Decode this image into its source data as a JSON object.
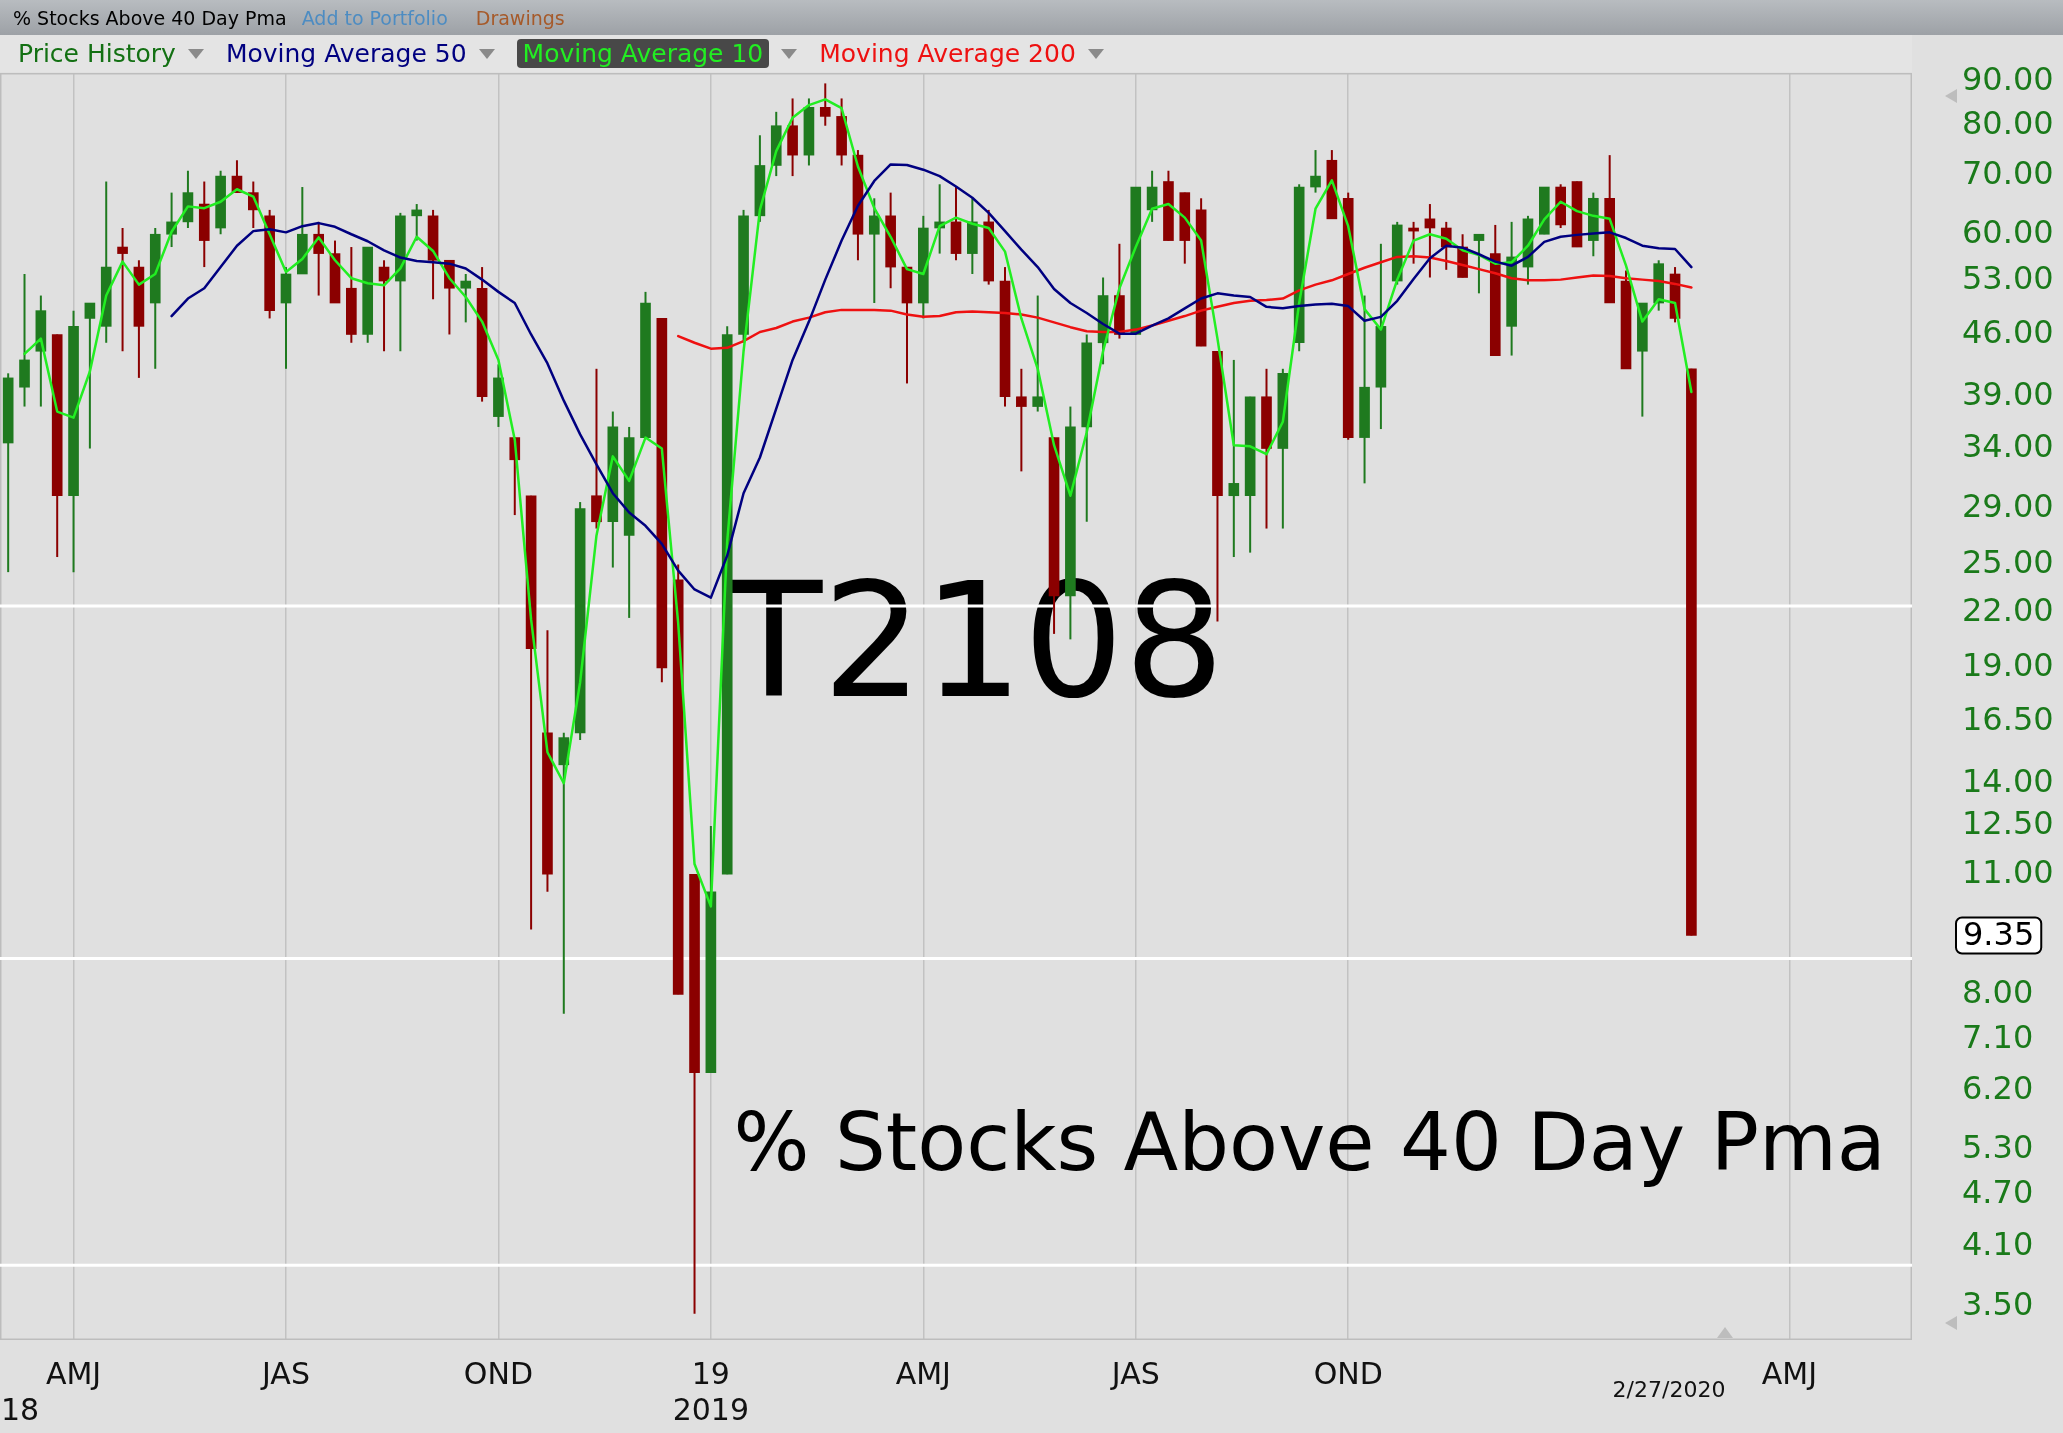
{
  "chart_data": {
    "type": "candlestick",
    "title": "% Stocks Above 40 Day Pma",
    "annotations": [
      "Add to Portfolio",
      "Drawings",
      "T2108",
      "% Stocks Above 40 Day Pma",
      "9.35",
      "2/27/2020",
      "18",
      "2019"
    ],
    "categories": [
      null,
      null,
      null,
      null,
      "AMJ",
      null,
      null,
      null,
      null,
      null,
      null,
      null,
      null,
      null,
      null,
      null,
      null,
      "JAS",
      null,
      null,
      null,
      null,
      null,
      null,
      null,
      null,
      null,
      null,
      null,
      null,
      "OND",
      null,
      null,
      null,
      null,
      null,
      null,
      null,
      null,
      null,
      null,
      null,
      null,
      "19",
      null,
      null,
      null,
      null,
      null,
      null,
      null,
      null,
      null,
      null,
      null,
      null,
      "AMJ",
      null,
      null,
      null,
      null,
      null,
      null,
      null,
      null,
      null,
      null,
      null,
      null,
      "JAS",
      null,
      null,
      null,
      null,
      null,
      null,
      null,
      null,
      null,
      null,
      null,
      null,
      "OND",
      null,
      null,
      null,
      null,
      null,
      null,
      null,
      null,
      null,
      null,
      null,
      null,
      null,
      null,
      null,
      null,
      null,
      null,
      null,
      null,
      null,
      null,
      null,
      null,
      null,
      null,
      "AMJ",
      null,
      null,
      null,
      null,
      null,
      null,
      null
    ],
    "ylim": [
      3.2,
      92
    ],
    "yticks": [
      {
        "value": 3.5,
        "label": "3.50"
      },
      {
        "value": 4.1,
        "label": "4.10"
      },
      {
        "value": 4.7,
        "label": "4.70"
      },
      {
        "value": 5.3,
        "label": "5.30"
      },
      {
        "value": 6.2,
        "label": "6.20"
      },
      {
        "value": 7.1,
        "label": "7.10"
      },
      {
        "value": 8,
        "label": "8.00"
      },
      {
        "value": 11,
        "label": "11.00"
      },
      {
        "value": 12.5,
        "label": "12.50"
      },
      {
        "value": 14,
        "label": "14.00"
      },
      {
        "value": 16.5,
        "label": "16.50"
      },
      {
        "value": 19,
        "label": "19.00"
      },
      {
        "value": 22,
        "label": "22.00"
      },
      {
        "value": 25,
        "label": "25.00"
      },
      {
        "value": 29,
        "label": "29.00"
      },
      {
        "value": 34,
        "label": "34.00"
      },
      {
        "value": 39,
        "label": "39.00"
      },
      {
        "value": 46,
        "label": "46.00"
      },
      {
        "value": 53,
        "label": "53.00"
      },
      {
        "value": 60,
        "label": "60.00"
      },
      {
        "value": 70,
        "label": "70.00"
      },
      {
        "value": 80,
        "label": "80.00"
      },
      {
        "value": 90,
        "label": "90.00"
      }
    ],
    "log": true,
    "grid": "x",
    "legend": "top left",
    "ref_lines": [
      {
        "axis": "y",
        "value": 22.4,
        "color": "#ffffff"
      },
      {
        "axis": "y",
        "value": 8.8,
        "color": "#ffffff"
      },
      {
        "axis": "y",
        "value": 3.9,
        "color": "#ffffff"
      }
    ],
    "series": [
      {
        "name": "Price History",
        "color": "#137013",
        "ohlc": [
          [
            34.5,
            41.5,
            24.5,
            41
          ],
          [
            40,
            54,
            38,
            43
          ],
          [
            44,
            51,
            38,
            49
          ],
          [
            46,
            46,
            25.5,
            30
          ],
          [
            30,
            49,
            24.5,
            47
          ],
          [
            48,
            50,
            34,
            50
          ],
          [
            47,
            69,
            45,
            55
          ],
          [
            58,
            61,
            44,
            57
          ],
          [
            55,
            56,
            41,
            47
          ],
          [
            50,
            61,
            42,
            60
          ],
          [
            60,
            67,
            58,
            62
          ],
          [
            62,
            71,
            61,
            67
          ],
          [
            65,
            69,
            55,
            59
          ],
          [
            61,
            71,
            60,
            70
          ],
          [
            70,
            73,
            67,
            67
          ],
          [
            67,
            69,
            61,
            64
          ],
          [
            63,
            64,
            48,
            49
          ],
          [
            50,
            55,
            42,
            54
          ],
          [
            54,
            68,
            54,
            60
          ],
          [
            60,
            62,
            51,
            57
          ],
          [
            57,
            59,
            50,
            50
          ],
          [
            52,
            58,
            45,
            46
          ],
          [
            46,
            58,
            45,
            58
          ],
          [
            55,
            56,
            44,
            53
          ],
          [
            53,
            63.5,
            44,
            63
          ],
          [
            63,
            65,
            59,
            64
          ],
          [
            63,
            64,
            50.5,
            56
          ],
          [
            56,
            56,
            46,
            52
          ],
          [
            52,
            54,
            47.5,
            53
          ],
          [
            52,
            55,
            38.5,
            39
          ],
          [
            37,
            42.5,
            36,
            41
          ],
          [
            35,
            35,
            28.5,
            33
          ],
          [
            30,
            30,
            9.5,
            20
          ],
          [
            16,
            21,
            10.5,
            11
          ],
          [
            14.7,
            16,
            7.6,
            15.8
          ],
          [
            16,
            29.5,
            15.7,
            29
          ],
          [
            30,
            42,
            27.5,
            28
          ],
          [
            28,
            37.5,
            24.8,
            36
          ],
          [
            27,
            36,
            21.7,
            35
          ],
          [
            35,
            51.5,
            35,
            50
          ],
          [
            48,
            48,
            18.3,
            19
          ],
          [
            24,
            25,
            8,
            8
          ],
          [
            11,
            11,
            3.43,
            6.5
          ],
          [
            6.5,
            12.5,
            6.5,
            10.5
          ],
          [
            11,
            47,
            11,
            46
          ],
          [
            46,
            64,
            45,
            63
          ],
          [
            63,
            78,
            62,
            72
          ],
          [
            72,
            83,
            70,
            80
          ],
          [
            80,
            86,
            70,
            74
          ],
          [
            74,
            86,
            72,
            84
          ],
          [
            84,
            89.5,
            80,
            82
          ],
          [
            82,
            86,
            72,
            74
          ],
          [
            74,
            75,
            56,
            60
          ],
          [
            60,
            66,
            50,
            63
          ],
          [
            63,
            67,
            52,
            55
          ],
          [
            55,
            55,
            40.4,
            50
          ],
          [
            50,
            63,
            48,
            61
          ],
          [
            61,
            68.5,
            57,
            62
          ],
          [
            62,
            68,
            56,
            57
          ],
          [
            57,
            66,
            54,
            62
          ],
          [
            62,
            64,
            52.5,
            53
          ],
          [
            53,
            55,
            38,
            39
          ],
          [
            39,
            42,
            32,
            38
          ],
          [
            38,
            51,
            37.5,
            39
          ],
          [
            35,
            35,
            20.8,
            23
          ],
          [
            23,
            38,
            20.5,
            36
          ],
          [
            36,
            46,
            28,
            45
          ],
          [
            45,
            53.5,
            42.5,
            51
          ],
          [
            51,
            58.5,
            45.5,
            46
          ],
          [
            46,
            68,
            46,
            68
          ],
          [
            64,
            71,
            62,
            68
          ],
          [
            69,
            71,
            59,
            59
          ],
          [
            67,
            67,
            55.5,
            59
          ],
          [
            64,
            66,
            44.6,
            44.6
          ],
          [
            44,
            44,
            21.5,
            30
          ],
          [
            30,
            43,
            25.5,
            31
          ],
          [
            30,
            39,
            25.8,
            39
          ],
          [
            39,
            42,
            27.5,
            34
          ],
          [
            34,
            42,
            27.5,
            41.5
          ],
          [
            45,
            68.5,
            44,
            68
          ],
          [
            68,
            75,
            67,
            70
          ],
          [
            73,
            75,
            62.5,
            62.5
          ],
          [
            66,
            67,
            34.8,
            35
          ],
          [
            35,
            51,
            31,
            40
          ],
          [
            40,
            58.5,
            35.8,
            47
          ],
          [
            53,
            62,
            52.5,
            61.5
          ],
          [
            61,
            62,
            55.5,
            60.5
          ],
          [
            62.5,
            65,
            53.5,
            61
          ],
          [
            61,
            62,
            54.6,
            58
          ],
          [
            58,
            60,
            53.5,
            53.5
          ],
          [
            59,
            60,
            51.3,
            60
          ],
          [
            57,
            61.5,
            43.5,
            43.5
          ],
          [
            47,
            62,
            43.5,
            56.5
          ],
          [
            55,
            63,
            52.5,
            62.5
          ],
          [
            60,
            68,
            60,
            68
          ],
          [
            68,
            68.5,
            61,
            61.5
          ],
          [
            69,
            69,
            58,
            58
          ],
          [
            59,
            67,
            56.6,
            66
          ],
          [
            66,
            74,
            50,
            50
          ],
          [
            53,
            54.5,
            42,
            42
          ],
          [
            44,
            50,
            37,
            50
          ],
          [
            50,
            56,
            49,
            55.5
          ],
          [
            54,
            55,
            47.5,
            48
          ],
          [
            42,
            42,
            9.35,
            9.35
          ],
          null,
          null,
          null,
          null,
          null,
          null,
          null,
          null,
          null,
          null,
          null,
          null,
          null
        ],
        "colors": [
          "#1f7a1f",
          "#1f7a1f",
          "#1f7a1f",
          "#8b0000",
          "#1f7a1f",
          "#1f7a1f",
          "#1f7a1f",
          "#8b0000",
          "#8b0000",
          "#1f7a1f",
          "#1f7a1f",
          "#1f7a1f",
          "#8b0000",
          "#1f7a1f",
          "#8b0000",
          "#8b0000",
          "#8b0000",
          "#1f7a1f",
          "#1f7a1f",
          "#8b0000",
          "#8b0000",
          "#8b0000",
          "#1f7a1f",
          "#8b0000",
          "#1f7a1f",
          "#1f7a1f",
          "#8b0000",
          "#8b0000",
          "#1f7a1f",
          "#8b0000",
          "#1f7a1f",
          "#8b0000",
          "#8b0000",
          "#8b0000",
          "#1f7a1f",
          "#1f7a1f",
          "#8b0000",
          "#1f7a1f",
          "#1f7a1f",
          "#1f7a1f",
          "#8b0000",
          "#8b0000",
          "#8b0000",
          "#1f7a1f",
          "#1f7a1f",
          "#1f7a1f",
          "#1f7a1f",
          "#1f7a1f",
          "#8b0000",
          "#1f7a1f",
          "#8b0000",
          "#8b0000",
          "#8b0000",
          "#1f7a1f",
          "#8b0000",
          "#8b0000",
          "#1f7a1f",
          "#1f7a1f",
          "#8b0000",
          "#1f7a1f",
          "#8b0000",
          "#8b0000",
          "#8b0000",
          "#1f7a1f",
          "#8b0000",
          "#1f7a1f",
          "#1f7a1f",
          "#1f7a1f",
          "#8b0000",
          "#1f7a1f",
          "#1f7a1f",
          "#8b0000",
          "#8b0000",
          "#8b0000",
          "#8b0000",
          "#1f7a1f",
          "#1f7a1f",
          "#8b0000",
          "#1f7a1f",
          "#1f7a1f",
          "#1f7a1f",
          "#8b0000",
          "#8b0000",
          "#1f7a1f",
          "#1f7a1f",
          "#1f7a1f",
          "#8b0000",
          "#8b0000",
          "#8b0000",
          "#8b0000",
          "#1f7a1f",
          "#8b0000",
          "#1f7a1f",
          "#1f7a1f",
          "#1f7a1f",
          "#8b0000",
          "#8b0000",
          "#1f7a1f",
          "#8b0000",
          "#8b0000",
          "#1f7a1f",
          "#1f7a1f",
          "#8b0000",
          "#8b0000",
          null,
          null,
          null,
          null,
          null,
          null,
          null,
          null,
          null,
          null,
          null,
          null,
          null
        ]
      },
      {
        "type": "line",
        "name": "Moving Average 50",
        "color": "#000080",
        "values": [
          null,
          null,
          null,
          null,
          null,
          null,
          null,
          null,
          null,
          null,
          48.3,
          50.6,
          52,
          55,
          58.2,
          60.5,
          60.8,
          60.3,
          61.3,
          61.8,
          61.2,
          60,
          58.9,
          57.5,
          56.4,
          55.9,
          55.7,
          55.5,
          54.8,
          53.2,
          51.5,
          50,
          46,
          42.6,
          38.6,
          35.3,
          32.6,
          30.2,
          28.7,
          27.7,
          26.4,
          24.6,
          23.4,
          22.9,
          25.6,
          30.2,
          33.2,
          37.8,
          43,
          47.6,
          53.2,
          59,
          64.7,
          69.1,
          72.2,
          72.1,
          71.2,
          70,
          68.1,
          66.1,
          63.5,
          60.5,
          57.6,
          55,
          51.9,
          50,
          48.7,
          47.3,
          46.1,
          46.1,
          47.1,
          48,
          49.3,
          50.6,
          51.3,
          51,
          50.8,
          49.5,
          49.3,
          49.6,
          49.8,
          49.9,
          49.6,
          47.7,
          48.2,
          50.3,
          53.3,
          56.3,
          58.2,
          57.9,
          56.9,
          55.8,
          55.2,
          56.5,
          58.8,
          59.6,
          59.9,
          60.1,
          60.3,
          59.4,
          58.2,
          57.8,
          57.7,
          55,
          null,
          null,
          null,
          null,
          null,
          null,
          null,
          null,
          null,
          null,
          null,
          null,
          null
        ]
      },
      {
        "type": "line",
        "name": "Moving Average 10",
        "color": "#22ee22",
        "values": [
          null,
          43.7,
          45.5,
          37.5,
          36.9,
          41.7,
          51,
          55.8,
          52.5,
          54,
          60.4,
          64.6,
          64.3,
          65.4,
          67.6,
          66.3,
          60,
          54.3,
          56.2,
          59.5,
          56,
          53.4,
          52.7,
          52.4,
          54.8,
          59.6,
          57.4,
          53.4,
          50.8,
          47.6,
          43,
          34.8,
          21.6,
          15.2,
          14,
          18.3,
          27,
          33.3,
          31.2,
          35,
          34,
          21.4,
          11.3,
          10.1,
          26.6,
          44,
          64,
          74.8,
          81.7,
          84.5,
          85.8,
          83.8,
          71.8,
          64.3,
          59.6,
          54.7,
          54,
          61.3,
          62.7,
          61.7,
          61,
          57.3,
          48,
          42,
          34.3,
          30,
          35.5,
          44,
          52,
          58,
          64.2,
          65,
          62.7,
          59,
          45.5,
          34.3,
          34.2,
          33.5,
          36.5,
          50,
          64.2,
          69.2,
          61.3,
          49.2,
          46.6,
          53.2,
          59,
          60,
          59.3,
          57.5,
          56.8,
          55.5,
          55.7,
          58.2,
          62.4,
          65.4,
          63.8,
          63,
          62.5,
          55.2,
          47.6,
          50.5,
          50,
          39.5,
          null,
          null,
          null,
          null,
          null,
          null,
          null,
          null,
          null,
          null,
          null,
          null,
          null
        ]
      },
      {
        "type": "line",
        "name": "Moving Average 200",
        "color": "#ee1111",
        "values": [
          null,
          null,
          null,
          null,
          null,
          null,
          null,
          null,
          null,
          null,
          null,
          null,
          null,
          null,
          null,
          null,
          null,
          null,
          null,
          null,
          null,
          null,
          null,
          null,
          null,
          null,
          null,
          null,
          null,
          null,
          null,
          null,
          null,
          null,
          null,
          null,
          null,
          null,
          null,
          null,
          null,
          45.8,
          45,
          44.3,
          44.4,
          45.2,
          46.3,
          46.8,
          47.6,
          48.1,
          48.8,
          49.1,
          49.1,
          49.1,
          49,
          48.5,
          48.2,
          48.3,
          48.8,
          48.9,
          48.8,
          48.7,
          48.5,
          48.1,
          47.5,
          46.9,
          46.4,
          46.3,
          46.3,
          46.6,
          47.1,
          47.7,
          48.3,
          49,
          49.5,
          50,
          50.3,
          50.4,
          50.6,
          51.7,
          52.5,
          53.1,
          54,
          54.9,
          55.7,
          56.5,
          56.6,
          56.4,
          55.9,
          55.3,
          54.7,
          54.1,
          53.4,
          53.1,
          53.1,
          53.2,
          53.5,
          53.8,
          53.7,
          53.4,
          53.2,
          53,
          52.6,
          52.1,
          null,
          null,
          null,
          null,
          null,
          null,
          null,
          null,
          null,
          null,
          null,
          null,
          null
        ]
      }
    ]
  }
}
